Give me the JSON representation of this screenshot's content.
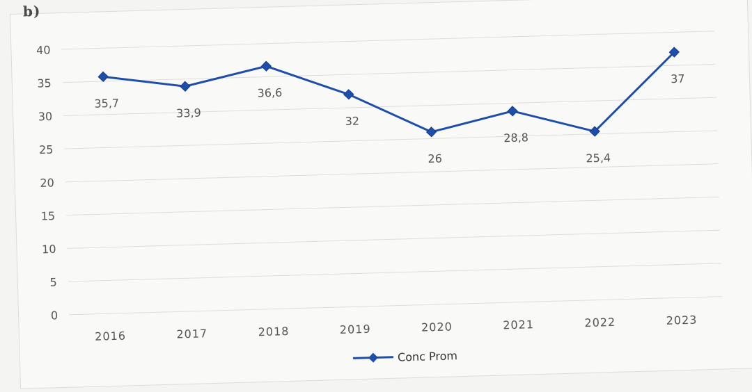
{
  "header": {
    "fragment": "b) "
  },
  "chart_data": {
    "type": "line",
    "title": "",
    "xlabel": "",
    "ylabel": "",
    "categories": [
      "2016",
      "2017",
      "2018",
      "2019",
      "2020",
      "2021",
      "2022",
      "2023"
    ],
    "series": [
      {
        "name": "Conc Prom",
        "values": [
          35.7,
          33.9,
          36.6,
          32,
          26,
          28.8,
          25.4,
          37
        ],
        "labels": [
          "35,7",
          "33,9",
          "36,6",
          "32",
          "26",
          "28,8",
          "25,4",
          "37"
        ],
        "color": "#1f4ea8",
        "marker": "diamond"
      }
    ],
    "ylim": [
      0,
      40
    ],
    "yticks": [
      0,
      5,
      10,
      15,
      20,
      25,
      30,
      35,
      40
    ],
    "grid": true,
    "legend": "bottom-center"
  }
}
